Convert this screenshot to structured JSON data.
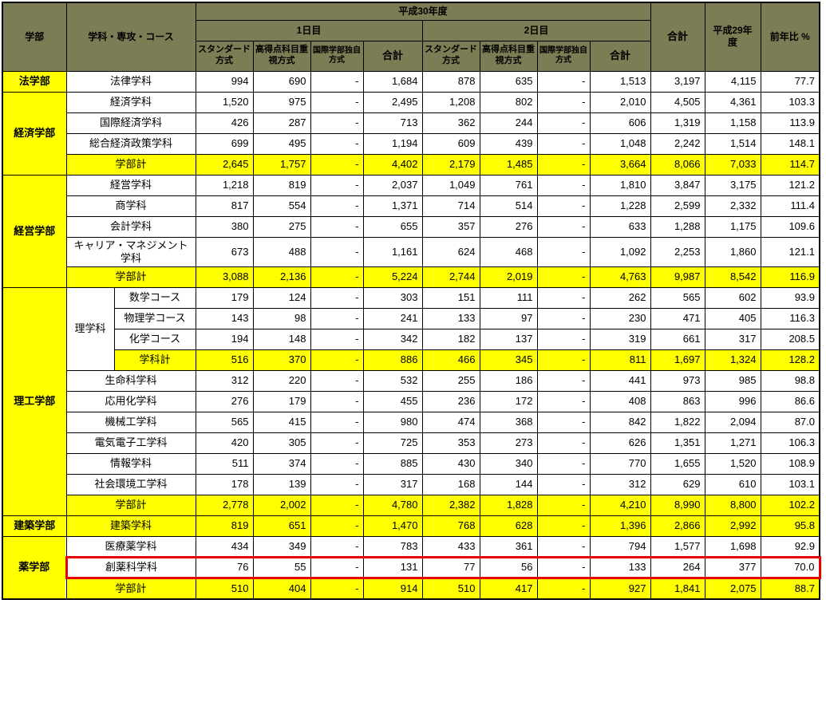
{
  "colors": {
    "header_bg": "#7c7c55",
    "highlight_yellow": "#ffff00",
    "highlight_red": "#e60000",
    "border": "#000000"
  },
  "table": {
    "header": {
      "faculty": "学部",
      "department": "学科・専攻・コース",
      "year_h30": "平成30年度",
      "day1": "1日目",
      "day2": "2日目",
      "standard": "スタンダード方式",
      "high_score": "高得点科目重視方式",
      "intl_original": "国際学部独自方式",
      "subtotal": "合計",
      "grand_total": "合計",
      "year_h29": "平成29年度",
      "yoy_percent": "前年比 %"
    },
    "rows": [
      {
        "faculty": "法学部",
        "faculty_rowspan": 1,
        "dept": "法律学科",
        "values": [
          "994",
          "690",
          "-",
          "1,684",
          "878",
          "635",
          "-",
          "1,513",
          "3,197",
          "4,115",
          "77.7"
        ]
      },
      {
        "faculty": "経済学部",
        "faculty_rowspan": 4,
        "dept": "経済学科",
        "values": [
          "1,520",
          "975",
          "-",
          "2,495",
          "1,208",
          "802",
          "-",
          "2,010",
          "4,505",
          "4,361",
          "103.3"
        ]
      },
      {
        "dept": "国際経済学科",
        "values": [
          "426",
          "287",
          "-",
          "713",
          "362",
          "244",
          "-",
          "606",
          "1,319",
          "1,158",
          "113.9"
        ]
      },
      {
        "dept": "総合経済政策学科",
        "values": [
          "699",
          "495",
          "-",
          "1,194",
          "609",
          "439",
          "-",
          "1,048",
          "2,242",
          "1,514",
          "148.1"
        ]
      },
      {
        "dept": "学部計",
        "yellow": true,
        "values": [
          "2,645",
          "1,757",
          "-",
          "4,402",
          "2,179",
          "1,485",
          "-",
          "3,664",
          "8,066",
          "7,033",
          "114.7"
        ]
      },
      {
        "faculty": "経営学部",
        "faculty_rowspan": 5,
        "dept": "経営学科",
        "values": [
          "1,218",
          "819",
          "-",
          "2,037",
          "1,049",
          "761",
          "-",
          "1,810",
          "3,847",
          "3,175",
          "121.2"
        ]
      },
      {
        "dept": "商学科",
        "values": [
          "817",
          "554",
          "-",
          "1,371",
          "714",
          "514",
          "-",
          "1,228",
          "2,599",
          "2,332",
          "111.4"
        ]
      },
      {
        "dept": "会計学科",
        "values": [
          "380",
          "275",
          "-",
          "655",
          "357",
          "276",
          "-",
          "633",
          "1,288",
          "1,175",
          "109.6"
        ]
      },
      {
        "dept": "キャリア・マネジメント学科",
        "values": [
          "673",
          "488",
          "-",
          "1,161",
          "624",
          "468",
          "-",
          "1,092",
          "2,253",
          "1,860",
          "121.1"
        ]
      },
      {
        "dept": "学部計",
        "yellow": true,
        "values": [
          "3,088",
          "2,136",
          "-",
          "5,224",
          "2,744",
          "2,019",
          "-",
          "4,763",
          "9,987",
          "8,542",
          "116.9"
        ]
      },
      {
        "faculty": "理工学部",
        "faculty_rowspan": 11,
        "group": "理学科",
        "group_rowspan": 4,
        "dept": "数学コース",
        "dept_colspan": 1,
        "values": [
          "179",
          "124",
          "-",
          "303",
          "151",
          "111",
          "-",
          "262",
          "565",
          "602",
          "93.9"
        ]
      },
      {
        "dept": "物理学コース",
        "dept_colspan": 1,
        "values": [
          "143",
          "98",
          "-",
          "241",
          "133",
          "97",
          "-",
          "230",
          "471",
          "405",
          "116.3"
        ]
      },
      {
        "dept": "化学コース",
        "dept_colspan": 1,
        "values": [
          "194",
          "148",
          "-",
          "342",
          "182",
          "137",
          "-",
          "319",
          "661",
          "317",
          "208.5"
        ]
      },
      {
        "dept": "学科計",
        "dept_colspan": 1,
        "yellow": true,
        "values": [
          "516",
          "370",
          "-",
          "886",
          "466",
          "345",
          "-",
          "811",
          "1,697",
          "1,324",
          "128.2"
        ]
      },
      {
        "dept": "生命科学科",
        "values": [
          "312",
          "220",
          "-",
          "532",
          "255",
          "186",
          "-",
          "441",
          "973",
          "985",
          "98.8"
        ]
      },
      {
        "dept": "応用化学科",
        "values": [
          "276",
          "179",
          "-",
          "455",
          "236",
          "172",
          "-",
          "408",
          "863",
          "996",
          "86.6"
        ]
      },
      {
        "dept": "機械工学科",
        "values": [
          "565",
          "415",
          "-",
          "980",
          "474",
          "368",
          "-",
          "842",
          "1,822",
          "2,094",
          "87.0"
        ]
      },
      {
        "dept": "電気電子工学科",
        "values": [
          "420",
          "305",
          "-",
          "725",
          "353",
          "273",
          "-",
          "626",
          "1,351",
          "1,271",
          "106.3"
        ]
      },
      {
        "dept": "情報学科",
        "values": [
          "511",
          "374",
          "-",
          "885",
          "430",
          "340",
          "-",
          "770",
          "1,655",
          "1,520",
          "108.9"
        ]
      },
      {
        "dept": "社会環境工学科",
        "values": [
          "178",
          "139",
          "-",
          "317",
          "168",
          "144",
          "-",
          "312",
          "629",
          "610",
          "103.1"
        ]
      },
      {
        "dept": "学部計",
        "yellow": true,
        "values": [
          "2,778",
          "2,002",
          "-",
          "4,780",
          "2,382",
          "1,828",
          "-",
          "4,210",
          "8,990",
          "8,800",
          "102.2"
        ]
      },
      {
        "faculty": "建築学部",
        "faculty_rowspan": 1,
        "dept": "建築学科",
        "yellow": true,
        "values": [
          "819",
          "651",
          "-",
          "1,470",
          "768",
          "628",
          "-",
          "1,396",
          "2,866",
          "2,992",
          "95.8"
        ]
      },
      {
        "faculty": "薬学部",
        "faculty_rowspan": 3,
        "dept": "医療薬学科",
        "values": [
          "434",
          "349",
          "-",
          "783",
          "433",
          "361",
          "-",
          "794",
          "1,577",
          "1,698",
          "92.9"
        ]
      },
      {
        "dept": "創薬科学科",
        "red": true,
        "values": [
          "76",
          "55",
          "-",
          "131",
          "77",
          "56",
          "-",
          "133",
          "264",
          "377",
          "70.0"
        ]
      },
      {
        "dept": "学部計",
        "yellow": true,
        "values": [
          "510",
          "404",
          "-",
          "914",
          "510",
          "417",
          "-",
          "927",
          "1,841",
          "2,075",
          "88.7"
        ]
      }
    ]
  }
}
